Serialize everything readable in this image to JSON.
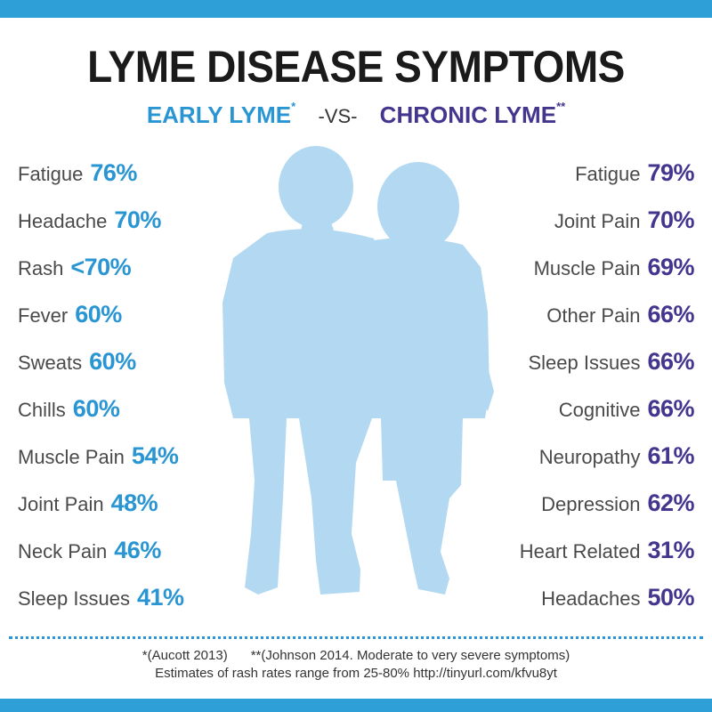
{
  "title": "LYME DISEASE SYMPTOMS",
  "subtitle": {
    "early": "EARLY LYME",
    "early_mark": "*",
    "vs": "-VS-",
    "chronic": "CHRONIC LYME",
    "chronic_mark": "**"
  },
  "colors": {
    "band": "#2f9fd8",
    "early": "#2a95d3",
    "chronic": "#44358f",
    "silhouette": "#b3d9f2"
  },
  "silhouette_icon": "couple-silhouette",
  "early_symptoms": [
    {
      "name": "Fatigue",
      "pct": "76%"
    },
    {
      "name": "Headache",
      "pct": "70%"
    },
    {
      "name": "Rash",
      "pct": "<70%"
    },
    {
      "name": "Fever",
      "pct": "60%"
    },
    {
      "name": "Sweats",
      "pct": "60%"
    },
    {
      "name": "Chills",
      "pct": "60%"
    },
    {
      "name": "Muscle Pain",
      "pct": "54%"
    },
    {
      "name": "Joint Pain",
      "pct": "48%"
    },
    {
      "name": "Neck Pain",
      "pct": "46%"
    },
    {
      "name": "Sleep Issues",
      "pct": "41%"
    }
  ],
  "chronic_symptoms": [
    {
      "name": "Fatigue",
      "pct": "79%"
    },
    {
      "name": "Joint Pain",
      "pct": "70%"
    },
    {
      "name": "Muscle Pain",
      "pct": "69%"
    },
    {
      "name": "Other Pain",
      "pct": "66%"
    },
    {
      "name": "Sleep Issues",
      "pct": "66%"
    },
    {
      "name": "Cognitive",
      "pct": "66%"
    },
    {
      "name": "Neuropathy",
      "pct": "61%"
    },
    {
      "name": "Depression",
      "pct": "62%"
    },
    {
      "name": "Heart Related",
      "pct": "31%"
    },
    {
      "name": "Headaches",
      "pct": "50%"
    }
  ],
  "footnotes": {
    "note1": "*(Aucott 2013)",
    "note2": "**(Johnson 2014. Moderate to very severe symptoms)",
    "note3": "Estimates of rash rates range from 25-80% http://tinyurl.com/kfvu8yt"
  }
}
